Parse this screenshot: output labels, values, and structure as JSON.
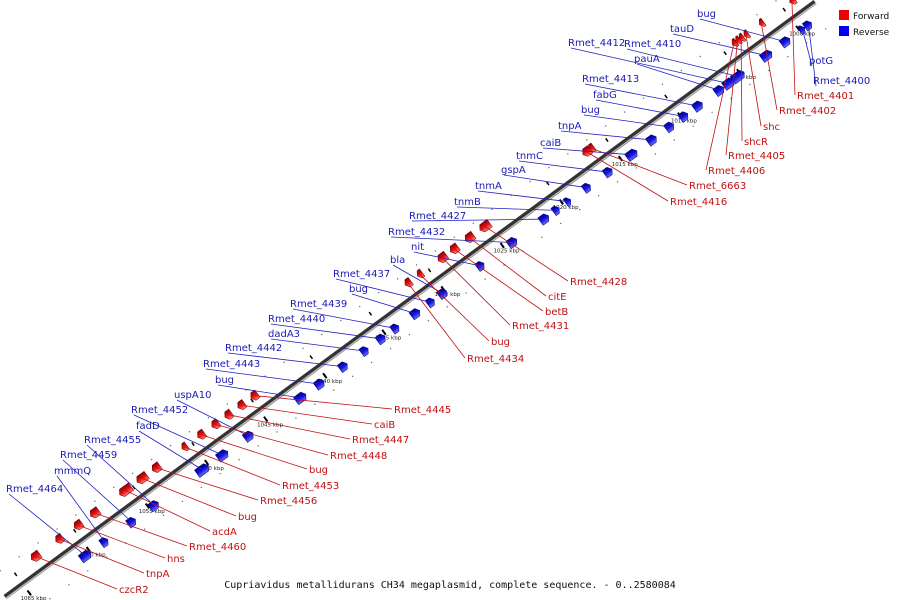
{
  "caption": "Cupriavidus metallidurans CH34 megaplasmid, complete sequence. - 0..2580084",
  "legend": [
    {
      "label": "Forward",
      "color": "#ee0000"
    },
    {
      "label": "Reverse",
      "color": "#0000ee"
    }
  ],
  "axis": {
    "start_kbp": 1000,
    "end_kbp": 1065,
    "tick_labels": [
      "1000 kbp",
      "1005 kbp",
      "1010 kbp",
      "1015 kbp",
      "1020 kbp",
      "1025 kbp",
      "1030 kbp",
      "1035 kbp",
      "1040 kbp",
      "1045 kbp",
      "1050 kbp",
      "1055 kbp",
      "1060 kbp",
      "1065 kbp"
    ]
  },
  "reverse_genes": [
    {
      "label": "potG",
      "kbp": 999.8
    },
    {
      "label": "Rmet_4400",
      "kbp": 999.3
    },
    {
      "label": "bug",
      "kbp": 1001.2
    },
    {
      "label": "tauD",
      "kbp": 1002.8
    },
    {
      "label": "Rmet_4410",
      "kbp": 1005.2
    },
    {
      "label": "Rmet_4412",
      "kbp": 1006.0
    },
    {
      "label": "pauA",
      "kbp": 1006.8
    },
    {
      "label": "Rmet_4413",
      "kbp": 1008.6
    },
    {
      "label": "fabG",
      "kbp": 1009.8
    },
    {
      "label": "bug",
      "kbp": 1011.0
    },
    {
      "label": "tnpA",
      "kbp": 1012.5
    },
    {
      "label": "caiB",
      "kbp": 1014.2
    },
    {
      "label": "tnmC",
      "kbp": 1016.2
    },
    {
      "label": "gspA",
      "kbp": 1018.0
    },
    {
      "label": "tnmA",
      "kbp": 1019.6
    },
    {
      "label": "tnmB",
      "kbp": 1020.6
    },
    {
      "label": "Rmet_4427",
      "kbp": 1021.6
    },
    {
      "label": "Rmet_4432",
      "kbp": 1024.3
    },
    {
      "label": "nit",
      "kbp": 1027.0
    },
    {
      "label": "bla",
      "kbp": 1030.2
    },
    {
      "label": "Rmet_4437",
      "kbp": 1031.2
    },
    {
      "label": "bug",
      "kbp": 1032.5
    },
    {
      "label": "Rmet_4439",
      "kbp": 1034.2
    },
    {
      "label": "Rmet_4440",
      "kbp": 1035.4
    },
    {
      "label": "dadA3",
      "kbp": 1036.8
    },
    {
      "label": "Rmet_4442",
      "kbp": 1038.6
    },
    {
      "label": "Rmet_4443",
      "kbp": 1040.6
    },
    {
      "label": "bug",
      "kbp": 1042.2
    },
    {
      "label": "uspA10",
      "kbp": 1046.6
    },
    {
      "label": "Rmet_4452",
      "kbp": 1048.8
    },
    {
      "label": "fadD",
      "kbp": 1050.5
    },
    {
      "label": "Rmet_4455",
      "kbp": 1054.6
    },
    {
      "label": "Rmet_4459",
      "kbp": 1056.5
    },
    {
      "label": "mmmQ",
      "kbp": 1058.8
    },
    {
      "label": "Rmet_4464",
      "kbp": 1060.4
    }
  ],
  "forward_genes": [
    {
      "label": "Rmet_4401",
      "kbp": 999.2
    },
    {
      "label": "Rmet_4402",
      "kbp": 1001.8
    },
    {
      "label": "shc",
      "kbp": 1003.1
    },
    {
      "label": "shcR",
      "kbp": 1003.5
    },
    {
      "label": "Rmet_4405",
      "kbp": 1003.8
    },
    {
      "label": "Rmet_4406",
      "kbp": 1004.1
    },
    {
      "label": "Rmet_6663",
      "kbp": 1016.2
    },
    {
      "label": "Rmet_4416",
      "kbp": 1016.6
    },
    {
      "label": "Rmet_4428",
      "kbp": 1025.2
    },
    {
      "label": "citE",
      "kbp": 1026.5
    },
    {
      "label": "betB",
      "kbp": 1027.8
    },
    {
      "label": "Rmet_4431",
      "kbp": 1028.8
    },
    {
      "label": "bug",
      "kbp": 1030.7
    },
    {
      "label": "Rmet_4434",
      "kbp": 1031.7
    },
    {
      "label": "Rmet_4445",
      "kbp": 1044.7
    },
    {
      "label": "caiB",
      "kbp": 1045.8
    },
    {
      "label": "Rmet_4447",
      "kbp": 1046.9
    },
    {
      "label": "Rmet_4448",
      "kbp": 1048.0
    },
    {
      "label": "bug",
      "kbp": 1049.2
    },
    {
      "label": "Rmet_4453",
      "kbp": 1050.6
    },
    {
      "label": "Rmet_4456",
      "kbp": 1053.0
    },
    {
      "label": "bug",
      "kbp": 1054.2
    },
    {
      "label": "acdA",
      "kbp": 1055.6
    },
    {
      "label": "Rmet_4460",
      "kbp": 1058.2
    },
    {
      "label": "hns",
      "kbp": 1059.6
    },
    {
      "label": "tnpA",
      "kbp": 1061.2
    },
    {
      "label": "czcR2",
      "kbp": 1063.2
    }
  ]
}
